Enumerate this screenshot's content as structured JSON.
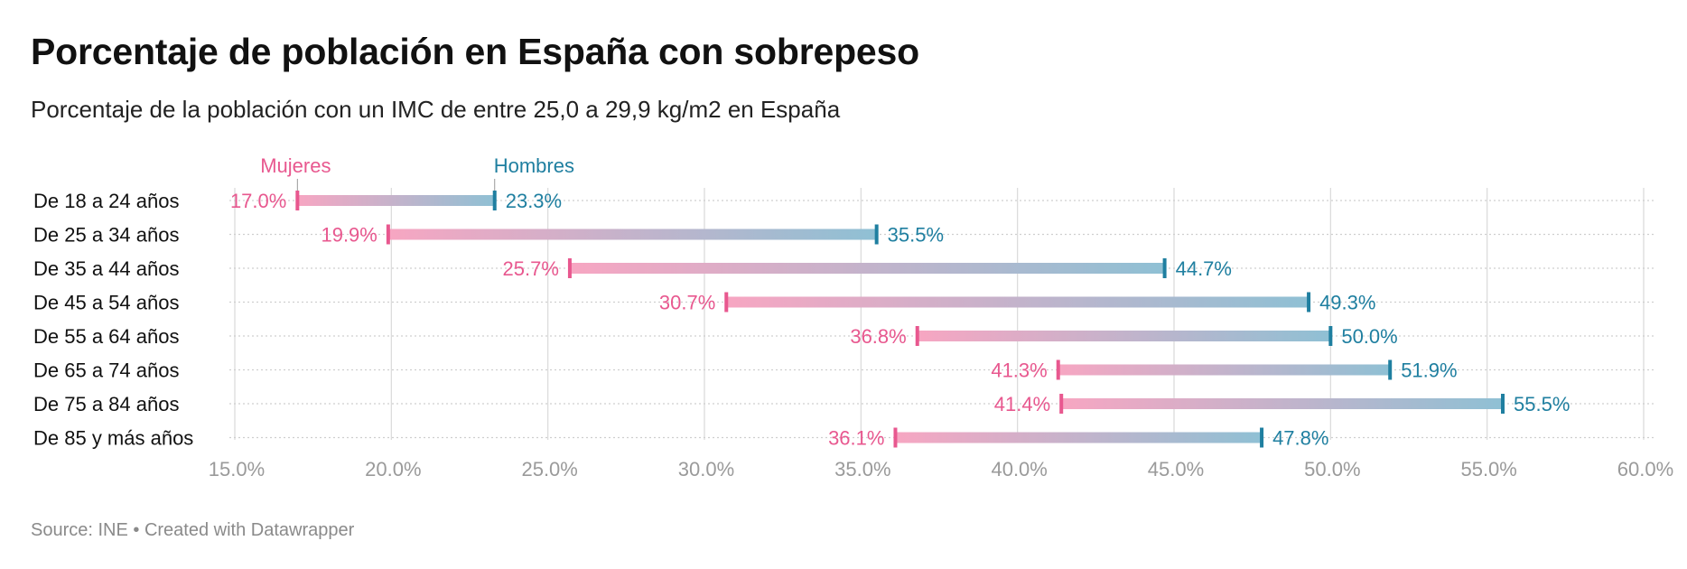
{
  "header": {
    "title": "Porcentaje de población en España con sobrepeso",
    "subtitle": "Porcentaje de la población con un IMC de entre 25,0 a 29,9 kg/m2 en España"
  },
  "footer": {
    "source": "Source: INE • Created with Datawrapper"
  },
  "colors": {
    "mujeres": "#e8588f",
    "hombres": "#1f7fa0",
    "bar_start": "#f7a6c2",
    "bar_end": "#8fc0d4",
    "grid": "#d9d9d9",
    "tick": "#9a9a9a"
  },
  "chart_data": {
    "type": "range-dot",
    "title": "Porcentaje de población en España con sobrepeso",
    "subtitle": "Porcentaje de la población con un IMC de entre 25,0 a 29,9 kg/m2 en España",
    "categories": [
      "De 18 a 24 años",
      "De 25 a 34 años",
      "De 35 a 44 años",
      "De 45 a 54 años",
      "De 55 a 64 años",
      "De 65 a 74 años",
      "De 75 a 84 años",
      "De 85 y más años"
    ],
    "series": [
      {
        "name": "Mujeres",
        "values": [
          17.0,
          19.9,
          25.7,
          30.7,
          36.8,
          41.3,
          41.4,
          36.1
        ]
      },
      {
        "name": "Hombres",
        "values": [
          23.3,
          35.5,
          44.7,
          49.3,
          50.0,
          51.9,
          55.5,
          47.8
        ]
      }
    ],
    "value_labels": {
      "Mujeres": [
        "17.0%",
        "19.9%",
        "25.7%",
        "30.7%",
        "36.8%",
        "41.3%",
        "41.4%",
        "36.1%"
      ],
      "Hombres": [
        "23.3%",
        "35.5%",
        "44.7%",
        "49.3%",
        "50.0%",
        "51.9%",
        "55.5%",
        "47.8%"
      ]
    },
    "xticks": [
      15,
      20,
      25,
      30,
      35,
      40,
      45,
      50,
      55,
      60
    ],
    "xtick_labels": [
      "15.0%",
      "20.0%",
      "25.0%",
      "30.0%",
      "35.0%",
      "40.0%",
      "45.0%",
      "50.0%",
      "55.0%",
      "60.0%"
    ],
    "xlim": [
      15,
      60
    ],
    "grid": true,
    "legend": "inline labels above first row"
  }
}
